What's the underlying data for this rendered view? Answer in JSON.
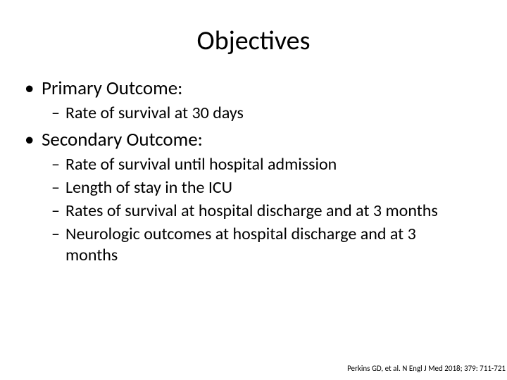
{
  "title": "Objectives",
  "primary": {
    "heading": "Primary Outcome:",
    "items": [
      "Rate of survival at 30 days"
    ]
  },
  "secondary": {
    "heading": "Secondary Outcome:",
    "items": [
      "Rate of survival until hospital admission",
      "Length of stay in the ICU",
      "Rates of survival at hospital discharge and at 3 months",
      "Neurologic outcomes at hospital discharge and at 3 months"
    ]
  },
  "citation": "Perkins GD, et al. N Engl J Med 2018; 379: 711-721",
  "colors": {
    "background": "#ffffff",
    "text": "#000000"
  },
  "typography": {
    "title_fontsize": 38,
    "level1_fontsize": 27,
    "level2_fontsize": 24,
    "citation_fontsize": 11,
    "font_family": "Calibri"
  }
}
